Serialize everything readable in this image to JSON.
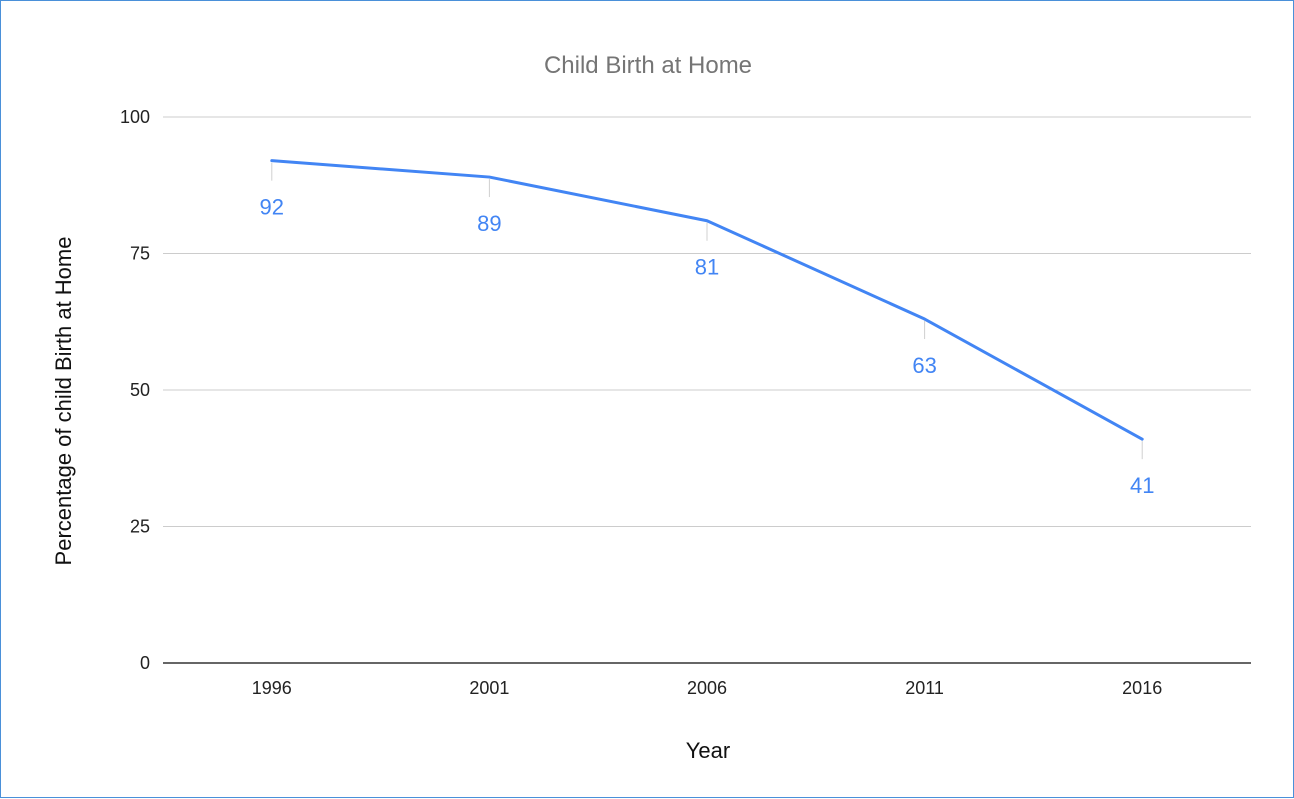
{
  "chart_data": {
    "type": "line",
    "title": "Child Birth at Home",
    "xlabel": "Year",
    "ylabel": "Percentage of child Birth at Home",
    "categories": [
      "1996",
      "2001",
      "2006",
      "2011",
      "2016"
    ],
    "series": [
      {
        "values": [
          92,
          89,
          81,
          63,
          41
        ]
      }
    ],
    "ylim": [
      0,
      100
    ],
    "yticks": [
      0,
      25,
      50,
      75,
      100
    ],
    "grid": true,
    "legend": "none",
    "data_labels": true,
    "colors": {
      "line": "#4285f4",
      "label": "#4285f4",
      "grid": "#cccccc",
      "axis": "#333333"
    }
  }
}
